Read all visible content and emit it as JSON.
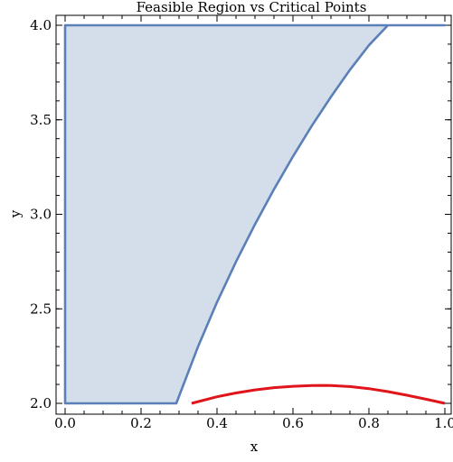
{
  "chart_data": {
    "type": "area",
    "title": "Feasible Region vs Critical Points",
    "xlabel": "x",
    "ylabel": "y",
    "xlim": [
      0,
      1
    ],
    "ylim": [
      2,
      4
    ],
    "xticks": [
      "0.0",
      "0.2",
      "0.4",
      "0.6",
      "0.8",
      "1.0"
    ],
    "yticks": [
      "2.0",
      "2.5",
      "3.0",
      "3.5",
      "4.0"
    ],
    "grid": false,
    "legend": "none",
    "colors": {
      "region_fill": "#cfd9e8",
      "region_edge": "#5b7fb8",
      "critical": "#e0141b"
    },
    "series": [
      {
        "kind": "region-boundary",
        "x": [
          0,
          0,
          0.2929,
          0.35,
          0.4,
          0.45,
          0.5,
          0.55,
          0.6,
          0.65,
          0.7,
          0.75,
          0.8,
          0.85,
          0.9,
          0.95,
          0.98,
          1.0,
          0
        ],
        "y": [
          4,
          2,
          2,
          2.3,
          2.535,
          2.749,
          2.947,
          3.132,
          3.306,
          3.469,
          3.621,
          3.764,
          3.894,
          4.01,
          4.05,
          4.0,
          4.0,
          4.0,
          4
        ]
      },
      {
        "kind": "critical-curve",
        "x": [
          0.333,
          0.4,
          0.45,
          0.5,
          0.55,
          0.6,
          0.65,
          0.68,
          0.7,
          0.75,
          0.8,
          0.85,
          0.9,
          0.95,
          1.0
        ],
        "y": [
          2.0,
          2.035,
          2.055,
          2.071,
          2.083,
          2.09,
          2.094,
          2.095,
          2.094,
          2.089,
          2.078,
          2.062,
          2.043,
          2.022,
          2.0
        ]
      }
    ]
  }
}
